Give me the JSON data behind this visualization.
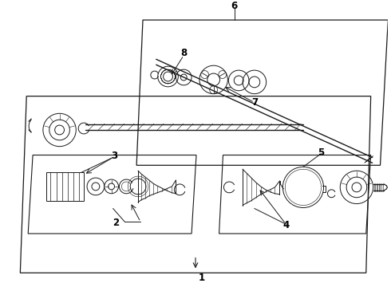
{
  "bg_color": "#ffffff",
  "line_color": "#1a1a1a",
  "label_color": "#000000",
  "fig_width": 4.9,
  "fig_height": 3.6,
  "dpi": 100,
  "shear": 0.18
}
